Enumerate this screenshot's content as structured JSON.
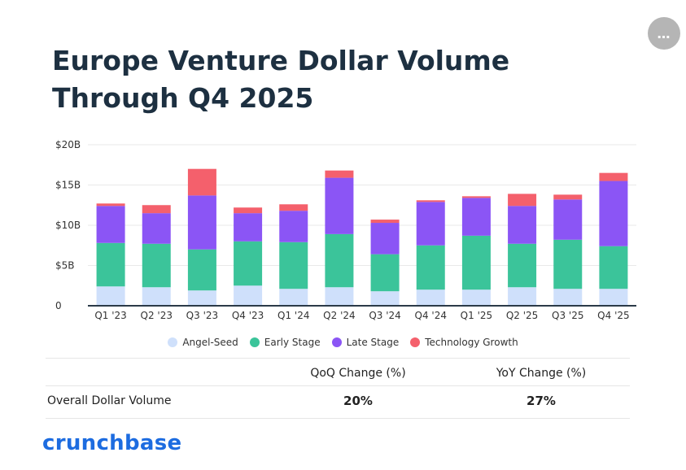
{
  "title": "Europe Venture Dollar Volume Through Q4 2025",
  "menu_icon": "…",
  "chart_data": {
    "type": "bar",
    "stacked": true,
    "categories": [
      "Q1 '23",
      "Q2 '23",
      "Q3 '23",
      "Q4 '23",
      "Q1 '24",
      "Q2 '24",
      "Q3 '24",
      "Q4 '24",
      "Q1 '25",
      "Q2 '25",
      "Q3 '25",
      "Q4 '25"
    ],
    "series": [
      {
        "name": "Angel-Seed",
        "color": "#cfe0fb",
        "values": [
          2.4,
          2.3,
          1.9,
          2.5,
          2.1,
          2.3,
          1.8,
          2.0,
          2.0,
          2.3,
          2.1,
          2.1
        ]
      },
      {
        "name": "Early Stage",
        "color": "#3bc49a",
        "values": [
          5.4,
          5.4,
          5.1,
          5.5,
          5.8,
          6.6,
          4.6,
          5.5,
          6.7,
          5.4,
          6.1,
          5.3
        ]
      },
      {
        "name": "Late Stage",
        "color": "#8b55f5",
        "values": [
          4.6,
          3.8,
          6.7,
          3.5,
          3.9,
          7.0,
          3.9,
          5.4,
          4.7,
          4.7,
          5.0,
          8.1
        ]
      },
      {
        "name": "Technology Growth",
        "color": "#f4606c",
        "values": [
          0.3,
          1.0,
          3.3,
          0.7,
          0.8,
          0.9,
          0.4,
          0.2,
          0.2,
          1.5,
          0.6,
          1.0
        ]
      }
    ],
    "yticks": [
      "$20B",
      "$15B",
      "$10B",
      "$5B",
      "0"
    ],
    "ytick_values": [
      20,
      15,
      10,
      5,
      0
    ],
    "ylim": [
      0,
      20
    ],
    "xlabel": "",
    "ylabel": ""
  },
  "table": {
    "headers": [
      "QoQ Change (%)",
      "YoY Change (%)"
    ],
    "row_label": "Overall Dollar Volume",
    "values": [
      "20%",
      "27%"
    ]
  },
  "logo": "crunchbase"
}
